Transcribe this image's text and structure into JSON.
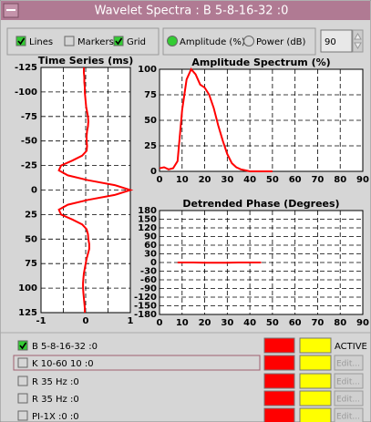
{
  "window": {
    "title": "Wavelet Spectra : B 5-8-16-32 :0"
  },
  "controls": {
    "checkboxes": [
      {
        "label": "Lines",
        "checked": true
      },
      {
        "label": "Markers",
        "checked": false
      },
      {
        "label": "Grid",
        "checked": true
      }
    ],
    "radios": [
      {
        "label": "Amplitude (%)",
        "selected": true
      },
      {
        "label": "Power (dB)",
        "selected": false
      }
    ],
    "field": 90
  },
  "chart_data": [
    {
      "type": "line",
      "title": "Time Series (ms)",
      "orientation": "vertical",
      "color": "#ff0000",
      "grid": true,
      "x": [
        -125,
        -120,
        -115,
        -110,
        -105,
        -100,
        -95,
        -90,
        -85,
        -80,
        -75,
        -70,
        -65,
        -60,
        -55,
        -50,
        -45,
        -40,
        -35,
        -30,
        -25,
        -20,
        -15,
        -10,
        -5,
        0,
        5,
        10,
        15,
        20,
        25,
        30,
        35,
        40,
        45,
        50,
        55,
        60,
        65,
        70,
        75,
        80,
        85,
        90,
        95,
        100,
        105,
        110,
        115,
        120,
        125
      ],
      "values": [
        -0.04,
        -0.04,
        -0.03,
        -0.03,
        -0.02,
        -0.02,
        -0.01,
        0,
        0.01,
        0.03,
        0.05,
        0.06,
        0.05,
        0.03,
        0.02,
        0.02,
        0.03,
        0.02,
        -0.08,
        -0.3,
        -0.55,
        -0.6,
        -0.4,
        0.05,
        0.65,
        1.0,
        0.65,
        0.05,
        -0.4,
        -0.6,
        -0.55,
        -0.3,
        -0.08,
        0.02,
        0.05,
        0.06,
        0.08,
        0.08,
        0.05,
        0.02,
        0,
        -0.02,
        -0.04,
        -0.05,
        -0.06,
        -0.06,
        -0.05,
        -0.04,
        -0.03,
        -0.02,
        -0.02
      ],
      "xlim": [
        -125,
        125
      ],
      "xticks": [
        -125,
        -100,
        -75,
        -50,
        -25,
        0,
        25,
        50,
        75,
        100,
        125
      ],
      "ylim": [
        -1,
        1
      ],
      "yticks": [
        -1,
        0,
        1
      ],
      "ygrid_minor": [
        -0.5,
        0.5
      ]
    },
    {
      "type": "line",
      "title": "Amplitude Spectrum (%)",
      "color": "#ff0000",
      "grid": true,
      "x": [
        0,
        2,
        4,
        6,
        8,
        10,
        12,
        14,
        16,
        18,
        20,
        22,
        24,
        26,
        28,
        30,
        32,
        34,
        36,
        38,
        40,
        45,
        50
      ],
      "values": [
        3,
        4,
        2,
        3,
        10,
        60,
        90,
        100,
        95,
        85,
        82,
        75,
        62,
        45,
        30,
        17,
        8,
        4,
        2,
        1,
        0,
        0,
        0
      ],
      "xlim": [
        0,
        90
      ],
      "xticks": [
        0,
        10,
        20,
        30,
        40,
        50,
        60,
        70,
        80,
        90
      ],
      "ylim": [
        0,
        100
      ],
      "yticks": [
        0,
        25,
        50,
        75,
        100
      ]
    },
    {
      "type": "line",
      "title": "Detrended Phase (Degrees)",
      "color": "#ff0000",
      "grid": true,
      "x": [
        8,
        15,
        20,
        25,
        30,
        35,
        40,
        45
      ],
      "values": [
        0,
        0,
        -1,
        -1,
        -1,
        0,
        0,
        0
      ],
      "xlim": [
        0,
        90
      ],
      "xticks": [
        0,
        10,
        20,
        30,
        40,
        50,
        60,
        70,
        80,
        90
      ],
      "ylim": [
        -180,
        180
      ],
      "yticks": [
        180,
        150,
        120,
        90,
        60,
        30,
        0,
        -30,
        -60,
        -90,
        -120,
        -150,
        -180
      ]
    }
  ],
  "layers": [
    {
      "label": "B 5-8-16-32 :0",
      "checked": true,
      "action": "ACTIVE"
    },
    {
      "label": "K 10-60 10 :0",
      "checked": false,
      "action": "Edit..."
    },
    {
      "label": "R  35 Hz :0",
      "checked": false,
      "action": "Edit..."
    },
    {
      "label": "R  35 Hz :0",
      "checked": false,
      "action": "Edit..."
    },
    {
      "label": "PI-1X :0 :0",
      "checked": false,
      "action": "Edit..."
    }
  ]
}
